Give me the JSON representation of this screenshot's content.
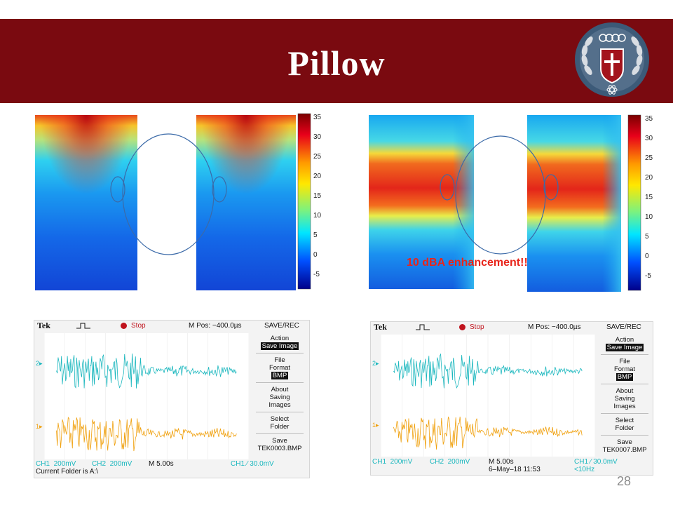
{
  "slide": {
    "title": "Pillow",
    "page_number": "28",
    "accent_color": "#7a0a10"
  },
  "colorbar": {
    "ticks": [
      "35",
      "30",
      "25",
      "20",
      "15",
      "10",
      "5",
      "0",
      "-5"
    ]
  },
  "annotation": {
    "enhancement": "10 dBA enhancement!!"
  },
  "scopes": [
    {
      "brand": "Tek",
      "status": "Stop",
      "mpos": "M Pos: −400.0µs",
      "menu_title": "SAVE/REC",
      "action_label": "Action",
      "action_value": "Save Image",
      "file_format_label": "File Format",
      "file_format_value": "BMP",
      "about_label": "About Saving Images",
      "select_label": "Select Folder",
      "save_label": "Save",
      "save_file": "TEK0003.BMP",
      "ch1": "CH1",
      "ch1_scale": "200mV",
      "ch2": "CH2",
      "ch2_scale": "200mV",
      "time_base": "M 5.00s",
      "trigger": "CH1 ∕ 30.0mV",
      "footer": "Current Folder is A:\\",
      "date": "",
      "freq": ""
    },
    {
      "brand": "Tek",
      "status": "Stop",
      "mpos": "M Pos: −400.0µs",
      "menu_title": "SAVE/REC",
      "action_label": "Action",
      "action_value": "Save Image",
      "file_format_label": "File Format",
      "file_format_value": "BMP",
      "about_label": "About Saving Images",
      "select_label": "Select Folder",
      "save_label": "Save",
      "save_file": "TEK0007.BMP",
      "ch1": "CH1",
      "ch1_scale": "200mV",
      "ch2": "CH2",
      "ch2_scale": "200mV",
      "time_base": "M 5.00s",
      "trigger": "CH1 ∕ 30.0mV",
      "footer": "",
      "date": "6–May–18 11:53",
      "freq": "<10Hz"
    }
  ],
  "channel_colors": {
    "ch1": "#f0a00c",
    "ch2": "#1ab7be"
  }
}
